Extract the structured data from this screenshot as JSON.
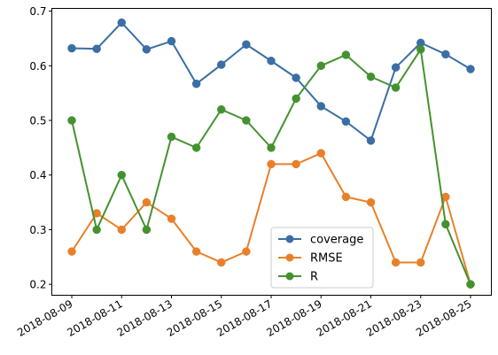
{
  "chart_data": {
    "type": "line",
    "x": [
      "2018-08-09",
      "2018-08-10",
      "2018-08-11",
      "2018-08-12",
      "2018-08-13",
      "2018-08-14",
      "2018-08-15",
      "2018-08-16",
      "2018-08-17",
      "2018-08-18",
      "2018-08-19",
      "2018-08-20",
      "2018-08-21",
      "2018-08-22",
      "2018-08-23",
      "2018-08-24",
      "2018-08-25"
    ],
    "x_tick_labels": [
      "2018-08-09",
      "2018-08-11",
      "2018-08-13",
      "2018-08-15",
      "2018-08-17",
      "2018-08-19",
      "2018-08-21",
      "2018-08-23",
      "2018-08-25"
    ],
    "y_ticks": [
      0.2,
      0.3,
      0.4,
      0.5,
      0.6,
      0.7
    ],
    "y_tick_labels": [
      "0.2",
      "0.3",
      "0.4",
      "0.5",
      "0.6",
      "0.7"
    ],
    "ylim": [
      0.18,
      0.705
    ],
    "grid": false,
    "legend_position": "bottom-center",
    "series": [
      {
        "name": "coverage",
        "color": "#3a6ea5",
        "values": [
          0.632,
          0.631,
          0.679,
          0.63,
          0.645,
          0.567,
          0.602,
          0.639,
          0.609,
          0.578,
          0.526,
          0.498,
          0.463,
          0.597,
          0.642,
          0.621,
          0.594
        ]
      },
      {
        "name": "RMSE",
        "color": "#e8802a",
        "values": [
          0.26,
          0.33,
          0.3,
          0.35,
          0.32,
          0.26,
          0.24,
          0.26,
          0.42,
          0.42,
          0.44,
          0.36,
          0.35,
          0.24,
          0.24,
          0.36,
          0.2
        ]
      },
      {
        "name": "R",
        "color": "#44922f",
        "values": [
          0.5,
          0.3,
          0.4,
          0.3,
          0.47,
          0.45,
          0.52,
          0.5,
          0.45,
          0.54,
          0.6,
          0.62,
          0.58,
          0.56,
          0.63,
          0.31,
          0.2
        ]
      }
    ]
  }
}
